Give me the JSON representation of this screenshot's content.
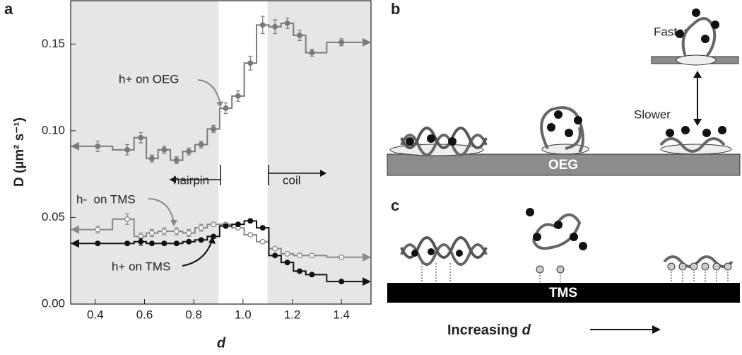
{
  "chart_data": {
    "type": "step",
    "panel_label": "a",
    "x_label": "d",
    "y_label": "D (µm² s⁻¹)",
    "xlim": [
      0.3,
      1.52
    ],
    "ylim": [
      0,
      0.175
    ],
    "xticks": [
      0.4,
      0.6,
      0.8,
      {
        "value": 1,
        "label": "1.0"
      },
      1.2,
      1.4
    ],
    "yticks": [
      {
        "value": 0,
        "label": "0.00"
      },
      {
        "value": 0.05,
        "label": "0.05"
      },
      {
        "value": 0.1,
        "label": "0.10"
      },
      {
        "value": 0.15,
        "label": "0.15"
      }
    ],
    "shaded_ranges": [
      [
        0.3,
        0.9
      ],
      [
        1.1,
        1.52
      ]
    ],
    "shade_color": "#e6e6e6",
    "x": [
      0.41,
      0.53,
      0.585,
      0.63,
      0.68,
      0.73,
      0.78,
      0.83,
      0.88,
      0.93,
      0.98,
      1.03,
      1.08,
      1.13,
      1.18,
      1.23,
      1.28,
      1.4
    ],
    "series": [
      {
        "name": "h+ on OEG",
        "color": "#7a7a7a",
        "marker": "filled",
        "values": [
          0.091,
          0.089,
          0.096,
          0.084,
          0.089,
          0.083,
          0.088,
          0.092,
          0.101,
          0.113,
          0.12,
          0.139,
          0.161,
          0.16,
          0.162,
          0.155,
          0.145,
          0.151
        ],
        "errors": [
          0.003,
          0.003,
          0.003,
          0.002,
          0.002,
          0.002,
          0.002,
          0.002,
          0.002,
          0.003,
          0.003,
          0.004,
          0.005,
          0.004,
          0.003,
          0.003,
          0.002,
          0.002
        ]
      },
      {
        "name": "h-  on TMS",
        "color": "#8a8a8a",
        "marker": "open",
        "values": [
          0.043,
          0.049,
          0.039,
          0.041,
          0.042,
          0.042,
          0.041,
          0.044,
          0.046,
          0.046,
          0.044,
          0.04,
          0.036,
          0.032,
          0.029,
          0.028,
          0.028,
          0.027
        ],
        "errors": [
          0.002,
          0.003,
          0.002,
          0.002,
          0.002,
          0.002,
          0.002,
          0.002,
          0.001,
          0.001,
          0.001,
          0.001,
          0.001,
          0.001,
          0.001,
          0.001,
          0.001,
          0.001
        ]
      },
      {
        "name": "h+ on TMS",
        "color": "#111111",
        "marker": "filled",
        "values": [
          0.035,
          0.035,
          0.036,
          0.035,
          0.035,
          0.035,
          0.036,
          0.037,
          0.039,
          0.045,
          0.046,
          0.048,
          0.044,
          0.028,
          0.024,
          0.019,
          0.017,
          0.013
        ],
        "errors": [
          0.001,
          0.001,
          0.002,
          0.001,
          0.001,
          0.001,
          0.001,
          0.001,
          0.001,
          0.001,
          0.001,
          0.001,
          0.001,
          0.001,
          0.001,
          0.001,
          0.001,
          0.001
        ]
      }
    ],
    "annotations": {
      "hairpin": "hairpin",
      "coil": "coil"
    }
  },
  "diagram": {
    "panel_b": "b",
    "panel_c": "c",
    "faster": "Faster",
    "slower": "Slower",
    "oeg": "OEG",
    "tms": "TMS",
    "increasing": "Increasing",
    "increasing_var": "d"
  }
}
